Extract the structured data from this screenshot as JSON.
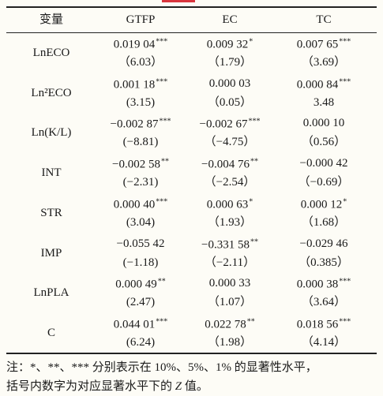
{
  "table": {
    "header": [
      "变量",
      "GTFP",
      "EC",
      "TC"
    ],
    "rows": [
      {
        "label": "LnECO",
        "cells": [
          {
            "coef": "0.019 04",
            "stars": "***",
            "z": "（6.03）"
          },
          {
            "coef": "0.009 32",
            "stars": "*",
            "z": "（1.79）"
          },
          {
            "coef": "0.007 65",
            "stars": "***",
            "z": "（3.69）"
          }
        ]
      },
      {
        "label": "Ln²ECO",
        "cells": [
          {
            "coef": "0.001 18",
            "stars": "***",
            "z": "(3.15)"
          },
          {
            "coef": "0.000 03",
            "z": "（0.05）"
          },
          {
            "coef": "0.000 84",
            "stars": "***",
            "z": "3.48"
          }
        ]
      },
      {
        "label": "Ln(K/L)",
        "cells": [
          {
            "coef": "−0.002 87",
            "stars": "***",
            "z": "(−8.81)"
          },
          {
            "coef": "−0.002 67",
            "stars": "***",
            "z": "（−4.75）"
          },
          {
            "coef": "0.000 10",
            "z": "（0.56）"
          }
        ]
      },
      {
        "label": "INT",
        "cells": [
          {
            "coef": "−0.002 58",
            "stars": "**",
            "z": "(−2.31)"
          },
          {
            "coef": "−0.004 76",
            "stars": "**",
            "z": "（−2.54）"
          },
          {
            "coef": "−0.000 42",
            "z": "（−0.69）"
          }
        ]
      },
      {
        "label": "STR",
        "cells": [
          {
            "coef": "0.000 40",
            "stars": "***",
            "z": "(3.04)"
          },
          {
            "coef": "0.000 63",
            "stars": "*",
            "z": "（1.93）"
          },
          {
            "coef": "0.000 12",
            "stars": "*",
            "z": "（1.68）"
          }
        ]
      },
      {
        "label": "IMP",
        "cells": [
          {
            "coef": "−0.055 42",
            "z": "(−1.18)"
          },
          {
            "coef": "−0.331 58",
            "stars": "**",
            "z": "（−2.11）"
          },
          {
            "coef": "−0.029 46",
            "z": "（0.385）"
          }
        ]
      },
      {
        "label": "LnPLA",
        "cells": [
          {
            "coef": "0.000 49",
            "stars": "**",
            "z": "(2.47)"
          },
          {
            "coef": "0.000 33",
            "z": "（1.07）"
          },
          {
            "coef": "0.000 38",
            "stars": "***",
            "z": "（3.64）"
          }
        ]
      },
      {
        "label": "C",
        "cells": [
          {
            "coef": "0.044 01",
            "stars": "***",
            "z": "(6.24)"
          },
          {
            "coef": "0.022 78",
            "stars": "**",
            "z": "（1.98）"
          },
          {
            "coef": "0.018 56",
            "stars": "***",
            "z": "（4.14）"
          }
        ]
      }
    ]
  },
  "note": {
    "line1": "注：*、**、*** 分别表示在 10%、5%、1% 的显著性水平，",
    "line2": [
      "括号内数字为对应显著水平下的 ",
      "Z",
      " 值。"
    ]
  }
}
